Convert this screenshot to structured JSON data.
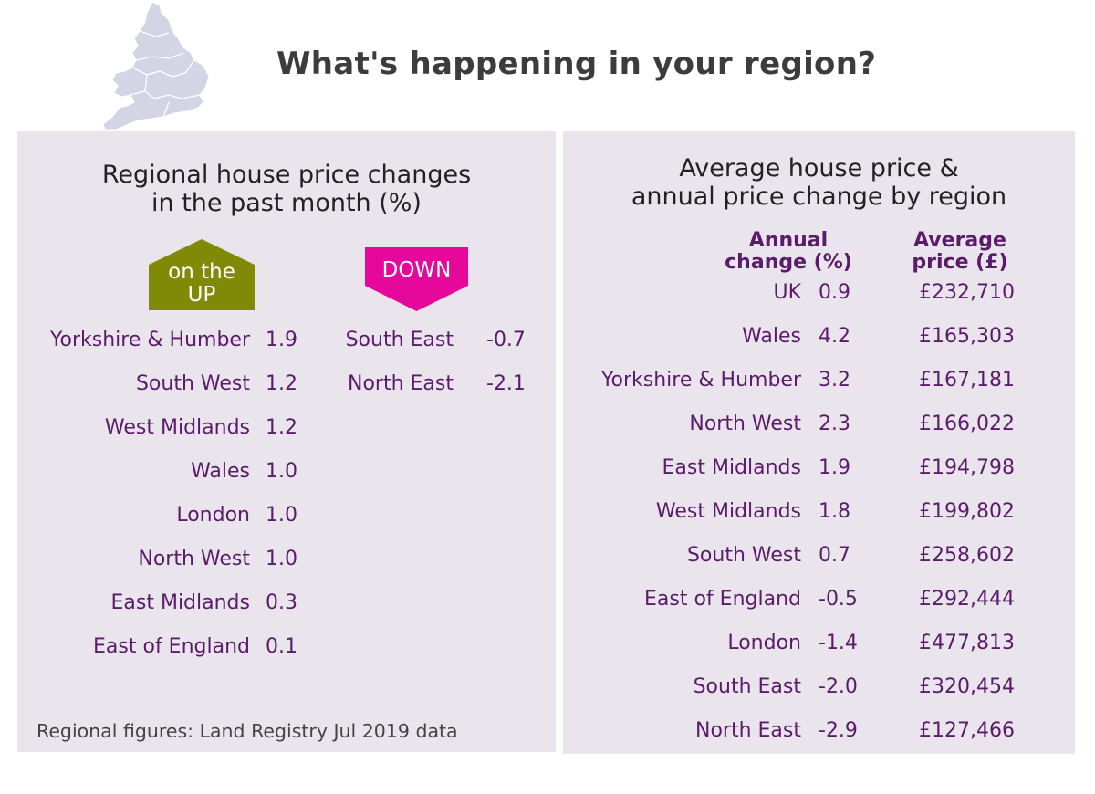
{
  "header": {
    "title": "What's happening in your region?"
  },
  "map": {
    "name": "england-wales-map-icon",
    "fill": "#d3d4e4"
  },
  "monthly": {
    "title_line1": "Regional house price changes",
    "title_line2": "in the past month (%)",
    "up_badge": {
      "line1": "on the",
      "line2": "UP",
      "color": "#808a07"
    },
    "down_badge": {
      "label": "DOWN",
      "color": "#e6079b"
    },
    "up": [
      {
        "region": "Yorkshire & Humber",
        "value": "1.9"
      },
      {
        "region": "South West",
        "value": "1.2"
      },
      {
        "region": "West Midlands",
        "value": "1.2"
      },
      {
        "region": "Wales",
        "value": "1.0"
      },
      {
        "region": "London",
        "value": "1.0"
      },
      {
        "region": "North West",
        "value": "1.0"
      },
      {
        "region": "East Midlands",
        "value": "0.3"
      },
      {
        "region": "East of England",
        "value": "0.1"
      }
    ],
    "down": [
      {
        "region": "South East",
        "value": "-0.7"
      },
      {
        "region": "North East",
        "value": "-2.1"
      }
    ],
    "source": "Regional figures: Land Registry Jul 2019 data"
  },
  "annual": {
    "title_line1": "Average house price &",
    "title_line2": "annual price change by region",
    "col_change_line1": "Annual",
    "col_change_line2": "change (%)",
    "col_price_line1": "Average",
    "col_price_line2": "price (£)",
    "rows": [
      {
        "region": "UK",
        "change": "0.9",
        "price": "£232,710"
      },
      {
        "region": "Wales",
        "change": "4.2",
        "price": "£165,303"
      },
      {
        "region": "Yorkshire & Humber",
        "change": "3.2",
        "price": "£167,181"
      },
      {
        "region": "North West",
        "change": "2.3",
        "price": "£166,022"
      },
      {
        "region": "East Midlands",
        "change": "1.9",
        "price": "£194,798"
      },
      {
        "region": "West Midlands",
        "change": "1.8",
        "price": "£199,802"
      },
      {
        "region": "South West",
        "change": "0.7",
        "price": "£258,602"
      },
      {
        "region": "East of England",
        "change": "-0.5",
        "price": "£292,444"
      },
      {
        "region": "London",
        "change": "-1.4",
        "price": "£477,813"
      },
      {
        "region": "South East",
        "change": "-2.0",
        "price": "£320,454"
      },
      {
        "region": "North East",
        "change": "-2.9",
        "price": "£127,466"
      }
    ]
  },
  "colors": {
    "panel_bg": "#eae5ec",
    "text_purple": "#5b1b6b",
    "title_dark": "#3c3c3c"
  }
}
